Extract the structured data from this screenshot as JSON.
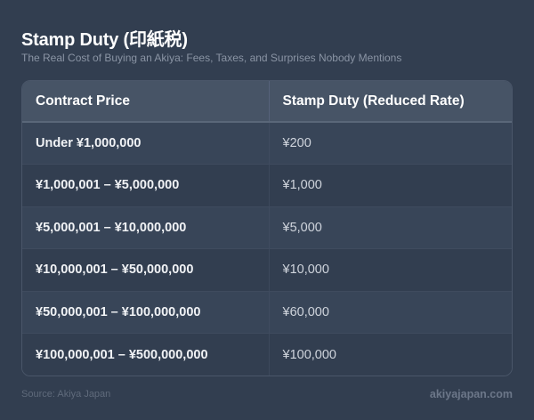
{
  "header": {
    "title": "Stamp Duty (印紙税)",
    "subtitle": "The Real Cost of Buying an Akiya: Fees, Taxes, and Surprises Nobody Mentions"
  },
  "table": {
    "columns": [
      "Contract Price",
      "Stamp Duty (Reduced Rate)"
    ],
    "rows": [
      {
        "price": "Under ¥1,000,000",
        "duty": "¥200"
      },
      {
        "price": "¥1,000,001 – ¥5,000,000",
        "duty": "¥1,000"
      },
      {
        "price": "¥5,000,001 – ¥10,000,000",
        "duty": "¥5,000"
      },
      {
        "price": "¥10,000,001 – ¥50,000,000",
        "duty": "¥10,000"
      },
      {
        "price": "¥50,000,001 – ¥100,000,000",
        "duty": "¥60,000"
      },
      {
        "price": "¥100,000,001 – ¥500,000,000",
        "duty": "¥100,000"
      }
    ]
  },
  "footer": {
    "source": "Source: Akiya Japan",
    "site": "akiyajapan.com"
  },
  "colors": {
    "background": "#323e50",
    "header_row": "#475466",
    "row_light": "#384558",
    "row_dark": "#323e50",
    "title_text": "#ffffff",
    "subtitle_text": "#8a94a4"
  }
}
